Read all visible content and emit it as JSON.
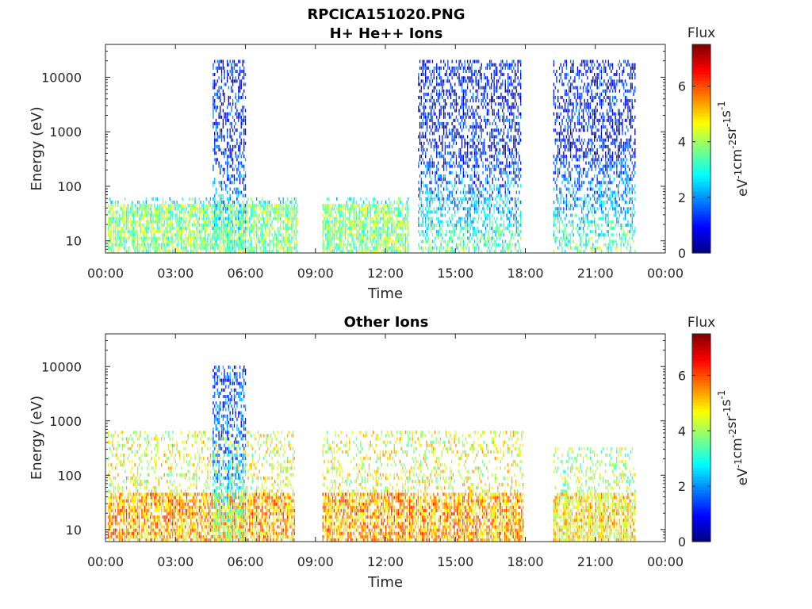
{
  "figure": {
    "title_line1": "RPCICA151020.PNG",
    "subtitle_line2": "H+ He++ Ions"
  },
  "chart_data": [
    {
      "type": "heatmap",
      "title": "H+ He++ Ions",
      "xlabel": "Time",
      "ylabel": "Energy (eV)",
      "x_ticks": [
        "00:00",
        "03:00",
        "06:00",
        "09:00",
        "12:00",
        "15:00",
        "18:00",
        "21:00",
        "00:00"
      ],
      "xlim_hours": [
        0,
        24
      ],
      "y_scale": "log",
      "y_ticks": [
        10,
        100,
        1000,
        10000
      ],
      "ylim": [
        6,
        40000
      ],
      "colorbar": {
        "label": "Flux",
        "units": "eV-1cm-2sr-1s-1",
        "ticks": [
          0,
          2,
          4,
          6
        ],
        "range": [
          0,
          7.5
        ],
        "colormap": "jet"
      },
      "activity_periods_hours": [
        {
          "start": 0.1,
          "end": 8.2,
          "energy_max_eV": 60,
          "flux_level": 3.0
        },
        {
          "start": 4.6,
          "end": 6.0,
          "energy_max_eV": 20000,
          "flux_level": 1.0
        },
        {
          "start": 9.3,
          "end": 13.0,
          "energy_max_eV": 60,
          "flux_level": 3.0
        },
        {
          "start": 13.4,
          "end": 17.8,
          "energy_max_eV": 20000,
          "flux_level": 1.0
        },
        {
          "start": 19.2,
          "end": 22.7,
          "energy_max_eV": 20000,
          "flux_level": 1.0
        }
      ]
    },
    {
      "type": "heatmap",
      "title": "Other Ions",
      "xlabel": "Time",
      "ylabel": "Energy (eV)",
      "x_ticks": [
        "00:00",
        "03:00",
        "06:00",
        "09:00",
        "12:00",
        "15:00",
        "18:00",
        "21:00",
        "00:00"
      ],
      "xlim_hours": [
        0,
        24
      ],
      "y_scale": "log",
      "y_ticks": [
        10,
        100,
        1000,
        10000
      ],
      "ylim": [
        6,
        40000
      ],
      "colorbar": {
        "label": "Flux",
        "units": "eV-1cm-2sr-1s-1",
        "ticks": [
          0,
          2,
          4,
          6
        ],
        "range": [
          0,
          7.5
        ],
        "colormap": "jet"
      },
      "activity_periods_hours": [
        {
          "start": 0.1,
          "end": 8.1,
          "energy_max_eV": 600,
          "flux_level": 4.5
        },
        {
          "start": 4.6,
          "end": 6.0,
          "energy_max_eV": 10000,
          "flux_level": 1.5
        },
        {
          "start": 9.3,
          "end": 17.9,
          "energy_max_eV": 600,
          "flux_level": 4.5
        },
        {
          "start": 19.2,
          "end": 22.7,
          "energy_max_eV": 300,
          "flux_level": 4.0
        }
      ]
    }
  ]
}
